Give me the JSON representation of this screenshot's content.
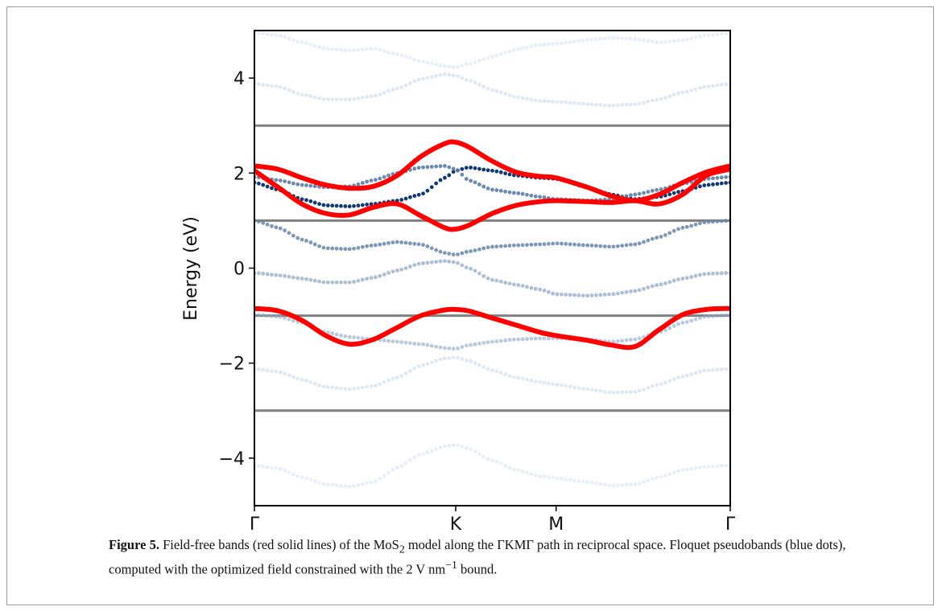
{
  "chart_data": {
    "type": "line",
    "ylabel": "Energy (eV)",
    "ylim": [
      -5,
      5
    ],
    "xlim": [
      0,
      1
    ],
    "x_ticks": [
      {
        "label": "Γ",
        "x": 0.0
      },
      {
        "label": "K",
        "x": 0.423
      },
      {
        "label": "M",
        "x": 0.634
      },
      {
        "label": "Γ",
        "x": 1.0
      }
    ],
    "y_ticks": [
      -4,
      -2,
      0,
      2,
      4
    ],
    "y_tick_labels": [
      "−4",
      "−2",
      "0",
      "2",
      "4"
    ],
    "reference_lines": [
      3,
      1,
      -1,
      -3
    ],
    "colors": {
      "field_free": "#ff0000",
      "reference": "#808080",
      "floquet_dark": "#08306b",
      "floquet_light": "#c6dbef"
    },
    "series": [
      {
        "style": "red-solid",
        "x": [
          0,
          0.05,
          0.1,
          0.15,
          0.2,
          0.25,
          0.3,
          0.35,
          0.4,
          0.423,
          0.45,
          0.5,
          0.55,
          0.6,
          0.634,
          0.7,
          0.75,
          0.8,
          0.85,
          0.9,
          0.95,
          1.0
        ],
        "values": [
          2.15,
          2.08,
          1.9,
          1.75,
          1.68,
          1.72,
          1.95,
          2.35,
          2.62,
          2.65,
          2.55,
          2.25,
          2.02,
          1.93,
          1.9,
          1.7,
          1.52,
          1.42,
          1.55,
          1.8,
          2.02,
          2.15
        ]
      },
      {
        "style": "red-solid",
        "x": [
          0,
          0.05,
          0.1,
          0.15,
          0.2,
          0.25,
          0.3,
          0.35,
          0.4,
          0.423,
          0.45,
          0.5,
          0.55,
          0.6,
          0.634,
          0.7,
          0.75,
          0.8,
          0.85,
          0.9,
          0.95,
          1.0
        ],
        "values": [
          2.05,
          1.7,
          1.35,
          1.15,
          1.12,
          1.28,
          1.35,
          1.1,
          0.85,
          0.82,
          0.9,
          1.15,
          1.32,
          1.4,
          1.42,
          1.4,
          1.38,
          1.42,
          1.35,
          1.55,
          1.95,
          2.08
        ]
      },
      {
        "style": "red-solid",
        "x": [
          0,
          0.05,
          0.1,
          0.15,
          0.2,
          0.25,
          0.3,
          0.35,
          0.4,
          0.423,
          0.45,
          0.5,
          0.55,
          0.6,
          0.634,
          0.7,
          0.75,
          0.8,
          0.85,
          0.9,
          0.95,
          1.0
        ],
        "values": [
          -0.85,
          -0.9,
          -1.1,
          -1.42,
          -1.6,
          -1.5,
          -1.25,
          -1.0,
          -0.88,
          -0.87,
          -0.9,
          -1.05,
          -1.2,
          -1.35,
          -1.42,
          -1.52,
          -1.62,
          -1.65,
          -1.3,
          -0.98,
          -0.87,
          -0.85
        ]
      },
      {
        "style": "blue-dots",
        "shade": 0.95,
        "x": [
          0,
          0.05,
          0.1,
          0.15,
          0.2,
          0.25,
          0.3,
          0.35,
          0.4,
          0.423,
          0.45,
          0.5,
          0.55,
          0.6,
          0.634,
          0.7,
          0.75,
          0.8,
          0.85,
          0.9,
          0.95,
          1.0
        ],
        "values": [
          1.8,
          1.65,
          1.45,
          1.32,
          1.3,
          1.35,
          1.42,
          1.55,
          1.9,
          2.05,
          2.12,
          2.05,
          1.95,
          1.9,
          1.88,
          1.7,
          1.55,
          1.45,
          1.5,
          1.62,
          1.75,
          1.8
        ]
      },
      {
        "style": "blue-dots",
        "shade": 0.55,
        "x": [
          0,
          0.05,
          0.1,
          0.15,
          0.2,
          0.25,
          0.3,
          0.35,
          0.4,
          0.423,
          0.45,
          0.5,
          0.55,
          0.6,
          0.634,
          0.7,
          0.75,
          0.8,
          0.85,
          0.9,
          0.95,
          1.0
        ],
        "values": [
          1.92,
          1.85,
          1.75,
          1.7,
          1.72,
          1.85,
          2.0,
          2.12,
          2.15,
          2.08,
          1.85,
          1.65,
          1.58,
          1.5,
          1.45,
          1.42,
          1.45,
          1.55,
          1.65,
          1.78,
          1.88,
          1.92
        ]
      },
      {
        "style": "blue-dots",
        "shade": 0.5,
        "x": [
          0,
          0.05,
          0.1,
          0.15,
          0.2,
          0.25,
          0.3,
          0.35,
          0.4,
          0.423,
          0.45,
          0.5,
          0.55,
          0.6,
          0.634,
          0.7,
          0.75,
          0.8,
          0.85,
          0.9,
          0.95,
          1.0
        ],
        "values": [
          1.0,
          0.85,
          0.6,
          0.42,
          0.4,
          0.48,
          0.55,
          0.5,
          0.32,
          0.28,
          0.35,
          0.45,
          0.48,
          0.5,
          0.52,
          0.48,
          0.45,
          0.5,
          0.65,
          0.85,
          0.97,
          1.0
        ]
      },
      {
        "style": "blue-dots",
        "shade": 0.35,
        "x": [
          0,
          0.05,
          0.1,
          0.15,
          0.2,
          0.25,
          0.3,
          0.35,
          0.4,
          0.423,
          0.45,
          0.5,
          0.55,
          0.6,
          0.634,
          0.7,
          0.75,
          0.8,
          0.85,
          0.9,
          0.95,
          1.0
        ],
        "values": [
          -0.1,
          -0.15,
          -0.22,
          -0.3,
          -0.3,
          -0.2,
          -0.05,
          0.1,
          0.15,
          0.12,
          0.0,
          -0.25,
          -0.35,
          -0.45,
          -0.55,
          -0.58,
          -0.55,
          -0.48,
          -0.35,
          -0.22,
          -0.12,
          -0.1
        ]
      },
      {
        "style": "blue-dots",
        "shade": 0.3,
        "x": [
          0,
          0.05,
          0.1,
          0.15,
          0.2,
          0.25,
          0.3,
          0.35,
          0.4,
          0.423,
          0.45,
          0.5,
          0.55,
          0.6,
          0.634,
          0.7,
          0.75,
          0.8,
          0.85,
          0.9,
          0.95,
          1.0
        ],
        "values": [
          -0.98,
          -1.02,
          -1.15,
          -1.35,
          -1.45,
          -1.5,
          -1.55,
          -1.6,
          -1.68,
          -1.7,
          -1.62,
          -1.55,
          -1.5,
          -1.48,
          -1.48,
          -1.5,
          -1.55,
          -1.5,
          -1.35,
          -1.15,
          -1.02,
          -0.98
        ]
      },
      {
        "style": "blue-dots",
        "shade": 0.12,
        "x": [
          0,
          0.05,
          0.1,
          0.15,
          0.2,
          0.25,
          0.3,
          0.35,
          0.4,
          0.423,
          0.45,
          0.5,
          0.55,
          0.6,
          0.634,
          0.7,
          0.75,
          0.8,
          0.85,
          0.9,
          0.95,
          1.0
        ],
        "values": [
          3.88,
          3.82,
          3.65,
          3.55,
          3.55,
          3.62,
          3.78,
          3.98,
          4.08,
          4.05,
          3.95,
          3.75,
          3.6,
          3.52,
          3.5,
          3.45,
          3.42,
          3.45,
          3.55,
          3.7,
          3.82,
          3.88
        ]
      },
      {
        "style": "blue-dots",
        "shade": 0.12,
        "x": [
          0,
          0.05,
          0.1,
          0.15,
          0.2,
          0.25,
          0.3,
          0.35,
          0.4,
          0.423,
          0.45,
          0.5,
          0.55,
          0.6,
          0.634,
          0.7,
          0.75,
          0.8,
          0.85,
          0.9,
          0.95,
          1.0
        ],
        "values": [
          -2.12,
          -2.18,
          -2.35,
          -2.5,
          -2.55,
          -2.48,
          -2.3,
          -2.05,
          -1.9,
          -1.88,
          -1.95,
          -2.15,
          -2.3,
          -2.4,
          -2.45,
          -2.55,
          -2.62,
          -2.6,
          -2.45,
          -2.28,
          -2.15,
          -2.12
        ]
      },
      {
        "style": "blue-dots",
        "shade": 0.07,
        "x": [
          0,
          0.05,
          0.1,
          0.15,
          0.2,
          0.25,
          0.3,
          0.35,
          0.4,
          0.423,
          0.45,
          0.5,
          0.55,
          0.6,
          0.634,
          0.7,
          0.75,
          0.8,
          0.85,
          0.9,
          0.95,
          1.0
        ],
        "values": [
          -4.15,
          -4.22,
          -4.4,
          -4.55,
          -4.6,
          -4.5,
          -4.2,
          -3.92,
          -3.75,
          -3.72,
          -3.8,
          -4.05,
          -4.25,
          -4.38,
          -4.42,
          -4.5,
          -4.58,
          -4.55,
          -4.4,
          -4.25,
          -4.18,
          -4.15
        ]
      },
      {
        "style": "blue-dots",
        "shade": 0.07,
        "x": [
          0,
          0.05,
          0.1,
          0.15,
          0.2,
          0.25,
          0.3,
          0.35,
          0.4,
          0.423,
          0.45,
          0.5,
          0.55,
          0.6,
          0.634,
          0.7,
          0.75,
          0.8,
          0.85,
          0.9,
          0.95,
          1.0
        ],
        "values": [
          4.95,
          4.9,
          4.75,
          4.62,
          4.58,
          4.62,
          4.5,
          4.35,
          4.25,
          4.22,
          4.3,
          4.45,
          4.6,
          4.7,
          4.72,
          4.8,
          4.85,
          4.82,
          4.75,
          4.8,
          4.9,
          4.95
        ]
      }
    ]
  },
  "caption": {
    "label": "Figure 5.",
    "text_part1": "Field-free bands (red solid lines) of the MoS",
    "subscript": "2",
    "text_part2": " model along the ΓKMΓ path in reciprocal space. Floquet pseudobands (blue dots), computed with the optimized field constrained with the 2 V nm",
    "superscript": "−1",
    "text_part3": " bound."
  }
}
